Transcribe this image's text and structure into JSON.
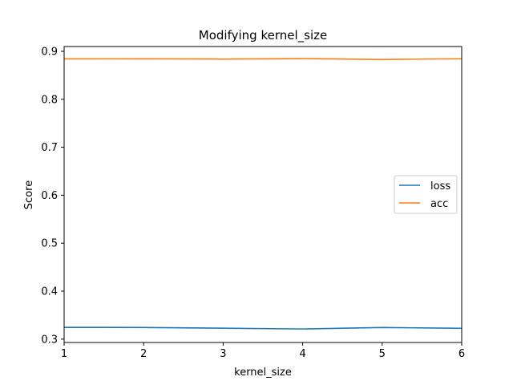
{
  "chart_data": {
    "type": "line",
    "title": "Modifying kernel_size",
    "xlabel": "kernel_size",
    "ylabel": "Score",
    "x": [
      1,
      2,
      3,
      4,
      5,
      6
    ],
    "xlim": [
      1,
      6
    ],
    "ylim": [
      0.293,
      0.91
    ],
    "xticks": [
      "1",
      "2",
      "3",
      "4",
      "5",
      "6"
    ],
    "yticks": [
      "0.3",
      "0.4",
      "0.5",
      "0.6",
      "0.7",
      "0.8",
      "0.9"
    ],
    "series": [
      {
        "name": "loss",
        "color": "#1f77b4",
        "values": [
          0.3245,
          0.3243,
          0.3228,
          0.3212,
          0.3243,
          0.3225
        ]
      },
      {
        "name": "acc",
        "color": "#ff7f0e",
        "values": [
          0.8842,
          0.8844,
          0.8838,
          0.8848,
          0.883,
          0.8845
        ]
      }
    ],
    "grid": false,
    "legend_position": "center-right"
  }
}
